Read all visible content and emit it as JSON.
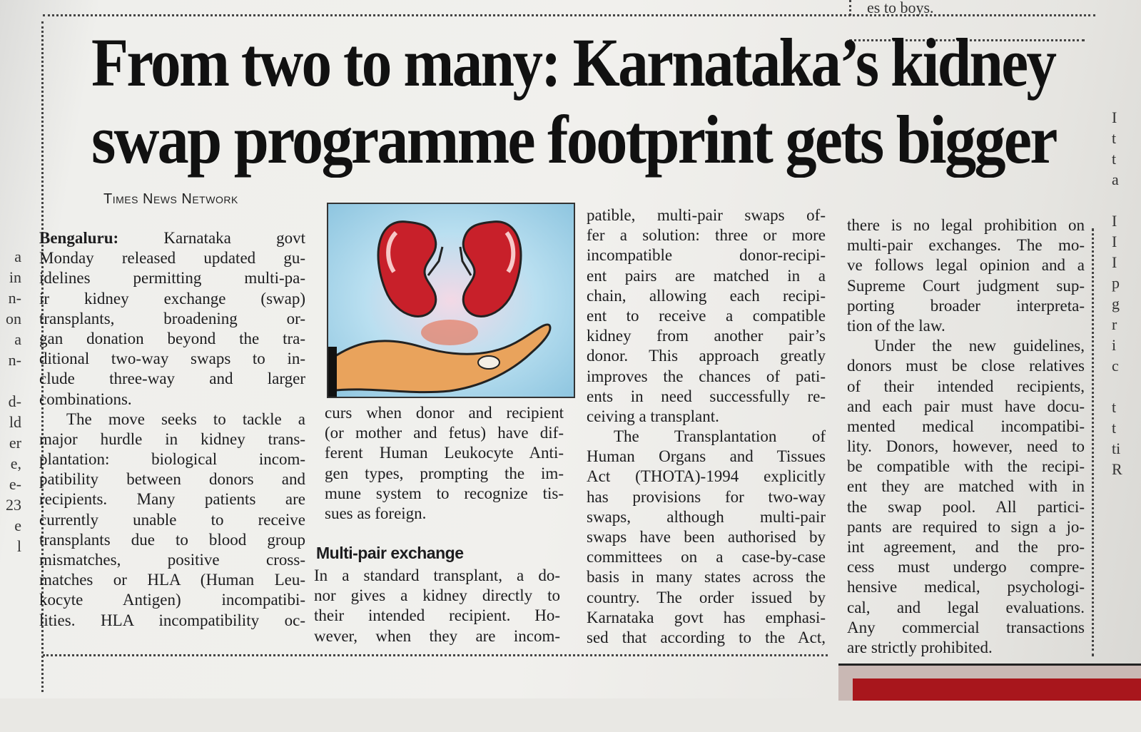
{
  "top_fragment": "es to boys.",
  "headline": {
    "line1": "From two to many: Karnataka’s kidney",
    "line2": "swap programme footprint gets bigger"
  },
  "byline": "Times News Network",
  "subhead": "Multi-pair exchange",
  "columns": [
    {
      "paragraphs": [
        [
          "Bengaluru: Karnataka govt",
          "Monday released updated gu-",
          "idelines permitting multi-pa-",
          "ir kidney exchange (swap)",
          "transplants, broadening or-",
          "gan donation beyond the tra-",
          "ditional two-way swaps to in-",
          "clude three-way and larger",
          "combinations."
        ],
        [
          "The move seeks to tackle a",
          "major hurdle in kidney trans-",
          "plantation: biological incom-",
          "patibility between donors and",
          "recipients. Many patients are",
          "currently unable to receive",
          "transplants due to blood group",
          "mismatches, positive cross-",
          "matches or HLA (Human Leu-",
          "kocyte Antigen) incompatibi-",
          "lities. HLA incompatibility oc-"
        ]
      ]
    },
    {
      "paragraphs": [
        [
          "curs when donor and recipient",
          "(or mother and fetus) have dif-",
          "ferent Human Leukocyte Anti-",
          "gen types, prompting the im-",
          "mune system to recognize tis-",
          "sues as foreign."
        ]
      ],
      "after_subhead": [
        [
          "In a standard transplant, a do-",
          "nor gives a kidney directly to",
          "their intended recipient. Ho-",
          "wever, when they are incom-"
        ]
      ]
    },
    {
      "paragraphs": [
        [
          "patible, multi-pair swaps of-",
          "fer a solution: three or more",
          "incompatible donor-recipi-",
          "ent pairs are matched in a",
          "chain, allowing each recipi-",
          "ent to receive a compatible",
          "kidney from another pair’s",
          "donor. This approach greatly",
          "improves the chances of pati-",
          "ents in need successfully re-",
          "ceiving a transplant."
        ],
        [
          "The Transplantation of",
          "Human Organs and Tissues",
          "Act (THOTA)-1994 explicitly",
          "has provisions for two-way",
          "swaps, although multi-pair",
          "swaps have been authorised by",
          "committees on a case-by-case",
          "basis in many states across the",
          "country. The order issued by",
          "Karnataka govt has emphasi-",
          "sed that according to the Act,"
        ]
      ]
    },
    {
      "paragraphs": [
        [
          "there is no legal prohibition on",
          "multi-pair exchanges. The mo-",
          "ve follows legal opinion and a",
          "Supreme Court judgment sup-",
          "porting broader interpreta-",
          "tion of the law."
        ],
        [
          "Under the new guidelines,",
          "donors must be close relatives",
          "of their intended recipients,",
          "and each pair must have docu-",
          "mented medical incompatibi-",
          "lity. Donors, however, need to",
          "be compatible with the recipi-",
          "ent they are matched with in",
          "the swap pool. All partici-",
          "pants are required to sign a jo-",
          "int agreement, and the pro-",
          "cess must undergo compre-",
          "hensive medical, psychologi-",
          "cal, and legal evaluations.",
          "Any commercial transactions",
          "are strictly prohibited."
        ]
      ]
    }
  ],
  "left_fragments": [
    "a",
    "in",
    "n-",
    "on",
    "a",
    "n-",
    "",
    "d-",
    "ld",
    "er",
    "e,",
    "e-",
    "23",
    "e",
    "l"
  ],
  "right_fragments": [
    "I",
    "t",
    "t",
    "a",
    "",
    "I",
    "I",
    "I",
    "p",
    "g",
    "r",
    "i",
    "c",
    "",
    "t",
    "t",
    "ti",
    "R"
  ],
  "illustration": {
    "description_icon": "kidneys-in-hand-illustration",
    "colors": {
      "background": "#a9d6ea",
      "kidney": "#c8202a",
      "hand": "#e9a35c"
    }
  }
}
